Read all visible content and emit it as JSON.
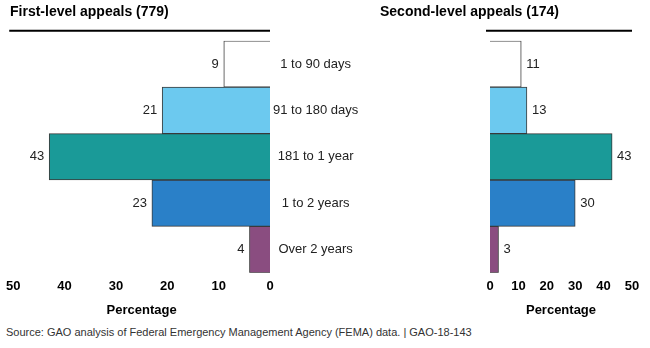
{
  "chart_data": [
    {
      "type": "bar",
      "orientation": "horizontal",
      "title": "First-level appeals (779)",
      "x_label": "Percentage",
      "categories": [
        "1 to 90 days",
        "91 to 180 days",
        "181 to 1 year",
        "1 to 2 years",
        "Over 2 years"
      ],
      "values": [
        9,
        21,
        43,
        23,
        4
      ],
      "colors": [
        "#ffffff",
        "#6cc9ef",
        "#1a9a98",
        "#2a80c8",
        "#8a4d80"
      ],
      "xlim": [
        50,
        0
      ],
      "xticks": [
        50,
        40,
        30,
        20,
        10,
        0
      ],
      "grid": false,
      "data_labels": true
    },
    {
      "type": "bar",
      "orientation": "horizontal",
      "title": "Second-level appeals (174)",
      "x_label": "Percentage",
      "categories": [
        "1 to 90 days",
        "91 to 180 days",
        "181 to 1 year",
        "1 to 2 years",
        "Over 2 years"
      ],
      "values": [
        11,
        13,
        43,
        30,
        3
      ],
      "colors": [
        "#ffffff",
        "#6cc9ef",
        "#1a9a98",
        "#2a80c8",
        "#8a4d80"
      ],
      "xlim": [
        0,
        50
      ],
      "xticks": [
        0,
        10,
        20,
        30,
        40,
        50
      ],
      "grid": false,
      "data_labels": true
    }
  ],
  "source": "Source: GAO analysis of Federal Emergency Management Agency (FEMA) data.  |  GAO-18-143"
}
